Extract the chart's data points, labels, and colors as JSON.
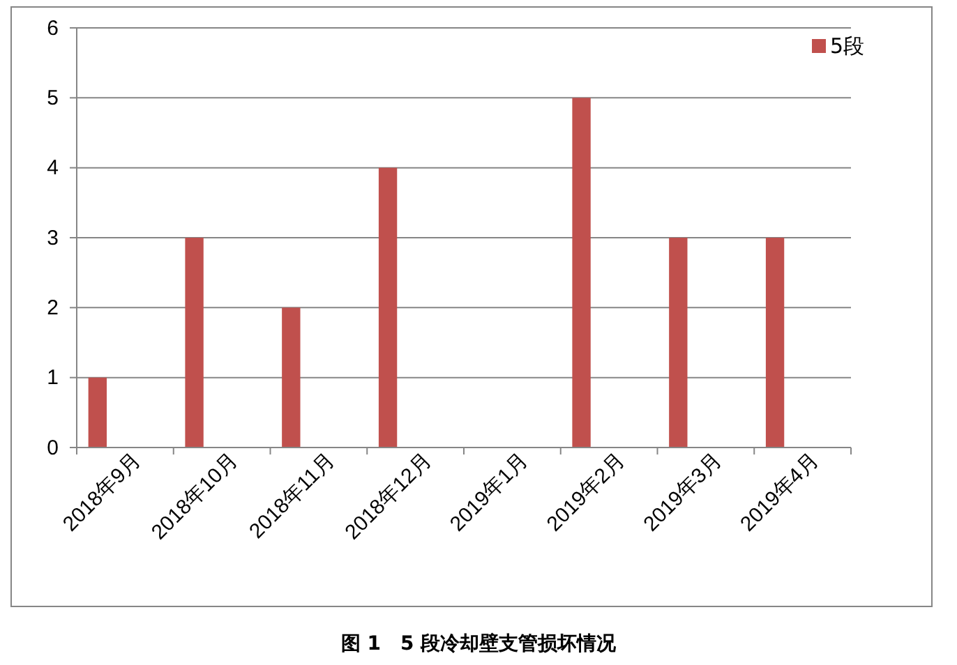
{
  "chart_data": {
    "type": "bar",
    "annotations": [
      "图 1　5 段冷却壁支管损坏情况"
    ],
    "categories": [
      "2018年9月",
      "2018年10月",
      "2018年11月",
      "2018年12月",
      "2019年1月",
      "2019年2月",
      "2019年3月",
      "2019年4月"
    ],
    "series": [
      {
        "name": "5段",
        "color": "#c0504d",
        "values": [
          1,
          3,
          2,
          4,
          0,
          5,
          3,
          3
        ]
      }
    ],
    "ylim": [
      0,
      6
    ],
    "yticks": [
      0,
      1,
      2,
      3,
      4,
      5,
      6
    ],
    "grid": "y",
    "legend": "top right"
  }
}
